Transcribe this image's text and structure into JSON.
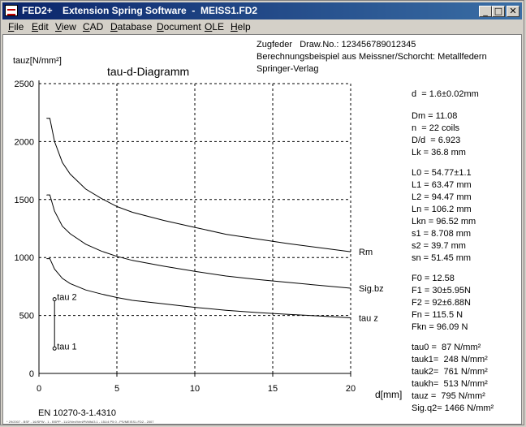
{
  "window": {
    "app_badge": "FED2+",
    "title": "Extension Spring Software  -  MEISS1.FD2",
    "buttons": {
      "minimize": "_",
      "maximize": "□",
      "close": "✕"
    }
  },
  "menu": [
    {
      "label": "File",
      "u": "F",
      "rest": "ile"
    },
    {
      "label": "Edit",
      "u": "E",
      "rest": "dit"
    },
    {
      "label": "View",
      "u": "V",
      "rest": "iew"
    },
    {
      "label": "CAD",
      "u": "C",
      "rest": "AD"
    },
    {
      "label": "Database",
      "u": "D",
      "rest": "atabase"
    },
    {
      "label": "Document",
      "u": "D",
      "rest": "ocument"
    },
    {
      "label": "OLE",
      "u": "O",
      "rest": "LE"
    },
    {
      "label": "Help",
      "u": "H",
      "rest": "elp"
    }
  ],
  "header": {
    "line1": "Zugfeder   Draw.No.: 123456789012345",
    "line2": "Berechnungsbeispiel aus Meissner/Schorcht: Metallfedern",
    "line3": "Springer-Verlag"
  },
  "specs": [
    {
      "text": "d  = 1.6±0.02mm",
      "y": 67
    },
    {
      "text": "Dm = 11.08",
      "y": 94
    },
    {
      "text": "n  = 22 coils",
      "y": 109
    },
    {
      "text": "D/d  = 6.923",
      "y": 124
    },
    {
      "text": "Lk = 36.8 mm",
      "y": 139
    },
    {
      "text": "L0 = 54.77±1.1",
      "y": 164
    },
    {
      "text": "L1 = 63.47 mm",
      "y": 179
    },
    {
      "text": "L2 = 94.47 mm",
      "y": 194
    },
    {
      "text": "Ln = 106.2 mm",
      "y": 209
    },
    {
      "text": "Lkn = 96.52 mm",
      "y": 224
    },
    {
      "text": "s1 = 8.708 mm",
      "y": 239
    },
    {
      "text": "s2 = 39.7 mm",
      "y": 254
    },
    {
      "text": "sn = 51.45 mm",
      "y": 269
    },
    {
      "text": "F0 = 12.58",
      "y": 294
    },
    {
      "text": "F1 = 30±5.95N",
      "y": 309
    },
    {
      "text": "F2 = 92±6.88N",
      "y": 324
    },
    {
      "text": "Fn = 115.5 N",
      "y": 339
    },
    {
      "text": "Fkn = 96.09 N",
      "y": 354
    },
    {
      "text": "tau0 =  87 N/mm²",
      "y": 379
    },
    {
      "text": "tauk1=  248 N/mm²",
      "y": 394
    },
    {
      "text": "tauk2=  761 N/mm²",
      "y": 409
    },
    {
      "text": "taukh=  513 N/mm²",
      "y": 424
    },
    {
      "text": "tauz =  795 N/mm²",
      "y": 439
    },
    {
      "text": "Sig.q2= 1466 N/mm²",
      "y": 454
    }
  ],
  "footer": {
    "material": "EN 10270-3-1.4310",
    "tiny": "* 29/2007 - BSF - 16/SPW - 1 - BSPP - 11/2/Verl/Verl/Pl/Mfd/3.1 - 151/4 P5 0 - PS/MEISS1.FD2 - 2007"
  },
  "chart_data": {
    "type": "line",
    "title": "tau-d-Diagramm",
    "ylabel": "tauz[N/mm²]",
    "xlabel": "d[mm]",
    "xlim": [
      0,
      20
    ],
    "ylim": [
      0,
      2500
    ],
    "xticks": [
      0,
      5,
      10,
      15,
      20
    ],
    "yticks": [
      0,
      500,
      1000,
      1500,
      2000,
      2500
    ],
    "grid": true,
    "x": [
      0.5,
      0.7,
      1.0,
      1.5,
      2,
      3,
      4,
      5,
      6,
      8,
      10,
      12,
      14,
      16,
      18,
      20
    ],
    "series": [
      {
        "name": "Rm",
        "values": [
          2200,
          2200,
          2000,
          1820,
          1720,
          1590,
          1510,
          1440,
          1390,
          1320,
          1260,
          1200,
          1160,
          1120,
          1085,
          1050
        ]
      },
      {
        "name": "Sig.bz",
        "values": [
          1540,
          1540,
          1400,
          1270,
          1205,
          1115,
          1055,
          1010,
          975,
          925,
          880,
          840,
          810,
          785,
          760,
          735
        ]
      },
      {
        "name": "tau z",
        "values": [
          990,
          990,
          900,
          820,
          775,
          720,
          685,
          655,
          630,
          600,
          570,
          545,
          525,
          510,
          495,
          480
        ]
      }
    ],
    "markers": [
      {
        "label": "tau 2",
        "x": 1.0,
        "y": 640
      },
      {
        "label": "tau 1",
        "x": 1.0,
        "y": 215
      }
    ]
  }
}
